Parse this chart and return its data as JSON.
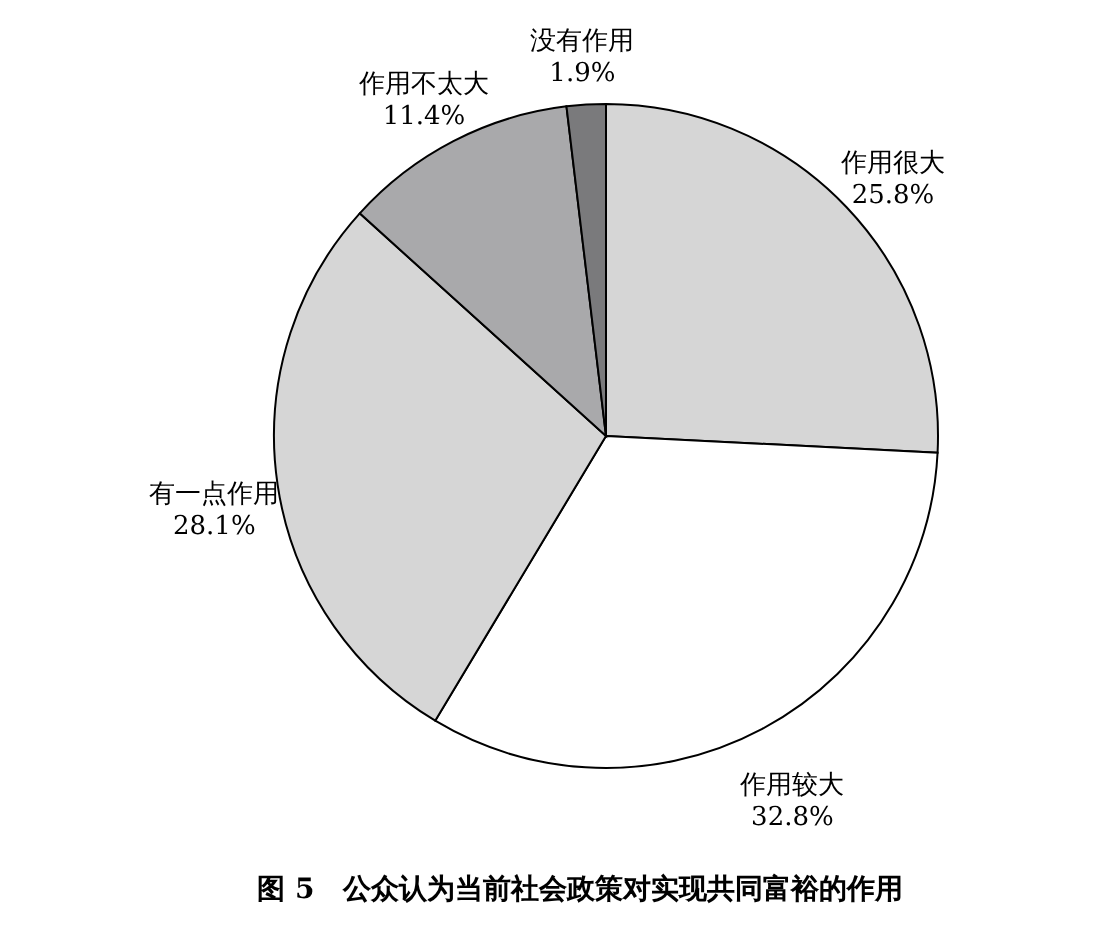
{
  "chart_data": {
    "type": "pie",
    "title": "图 5　公众认为当前社会政策对实现共同富裕的作用",
    "categories": [
      "作用很大",
      "作用较大",
      "有一点作用",
      "作用不太大",
      "没有作用"
    ],
    "values": [
      25.8,
      32.8,
      28.1,
      11.4,
      1.9
    ],
    "value_labels": [
      "25.8%",
      "32.8%",
      "28.1%",
      "11.4%",
      "1.9%"
    ],
    "colors": [
      "#d6d6d6",
      "#ffffff",
      "#d6d6d6",
      "#a9a9ab",
      "#7a7a7c"
    ]
  }
}
